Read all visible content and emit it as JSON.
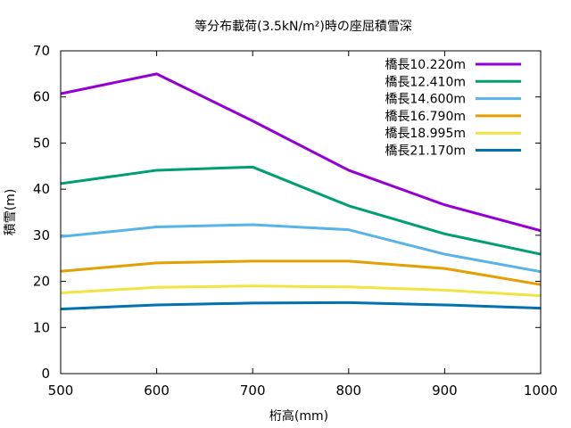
{
  "chart_data": {
    "type": "line",
    "title": "等分布載荷(3.5kN/m²)時の座屈積雪深",
    "xlabel": "桁高(mm)",
    "ylabel": "積雪(m)",
    "xlim": [
      500,
      1000
    ],
    "ylim": [
      0,
      70
    ],
    "x_ticks": [
      500,
      600,
      700,
      800,
      900,
      1000
    ],
    "y_ticks": [
      0,
      10,
      20,
      30,
      40,
      50,
      60,
      70
    ],
    "grid": false,
    "legend_position": "top-right",
    "x": [
      500,
      600,
      700,
      800,
      900,
      1000
    ],
    "series": [
      {
        "name": "橋長10.220m",
        "color": "#9400d3",
        "values": [
          60.7,
          65.0,
          54.8,
          44.1,
          36.6,
          31.0
        ]
      },
      {
        "name": "橋長12.410m",
        "color": "#009e73",
        "values": [
          41.2,
          44.1,
          44.8,
          36.4,
          30.3,
          25.9
        ]
      },
      {
        "name": "橋長14.600m",
        "color": "#56b4e9",
        "values": [
          29.7,
          31.8,
          32.3,
          31.2,
          25.9,
          22.1
        ]
      },
      {
        "name": "橋長16.790m",
        "color": "#e69f00",
        "values": [
          22.2,
          24.0,
          24.4,
          24.4,
          22.8,
          19.3
        ]
      },
      {
        "name": "橋長18.995m",
        "color": "#f0e442",
        "values": [
          17.5,
          18.7,
          19.0,
          18.8,
          18.1,
          16.9
        ]
      },
      {
        "name": "橋長21.170m",
        "color": "#0072b2",
        "values": [
          14.0,
          14.9,
          15.3,
          15.4,
          14.9,
          14.2
        ]
      }
    ]
  }
}
